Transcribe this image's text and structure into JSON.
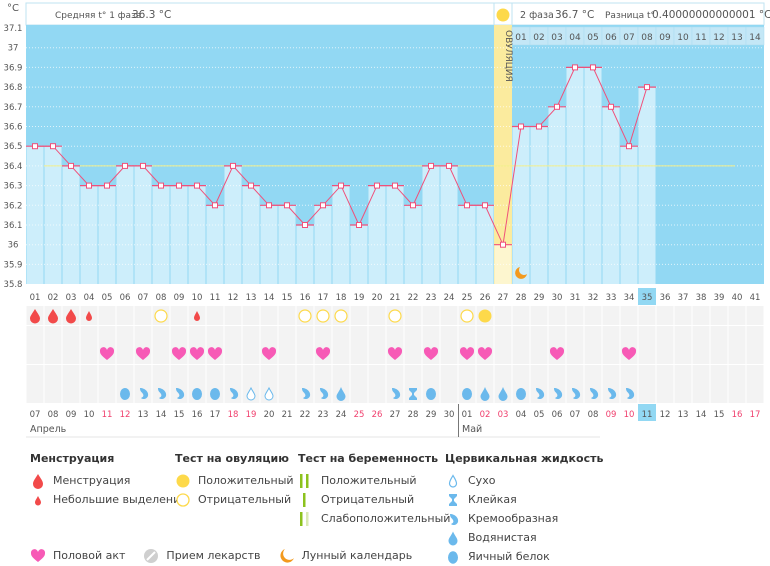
{
  "header": {
    "phase1_label": "Средняя t° 1 фаза",
    "phase1_value": "36.3 °C",
    "phase2_label": "2 фаза",
    "phase2_value": "36.7 °C",
    "diff_label": "Разница t°",
    "diff_value": "0.40000000000001 °C",
    "ovulation_label": "ОВУЛЯЦИЯ"
  },
  "colors": {
    "plot_bg": "#92d8f3",
    "bar": "#cdeefb",
    "ovulation": "#fbeb9e",
    "ovulation_bar": "#fdf6cf",
    "line": "#f0507a",
    "coverline": "#f3ef8a",
    "menstruation": "#f24a4a",
    "heart": "#f75ab6",
    "ovulation_test": "#fdd94a",
    "fluid": "#6bb9ec",
    "moon": "#f39a1e",
    "weekend": "#f0406e",
    "today": "#92d8f3"
  },
  "chart_data": {
    "type": "line",
    "ylabel": "°C",
    "ylim": [
      35.8,
      37.1
    ],
    "yticks": [
      "37.1",
      "37",
      "36.9",
      "36.8",
      "36.7",
      "36.6",
      "36.5",
      "36.4",
      "36.3",
      "36.2",
      "36.1",
      "36",
      "35.9",
      "35.8"
    ],
    "grid": true,
    "cycle_days": [
      "01",
      "02",
      "03",
      "04",
      "05",
      "06",
      "07",
      "08",
      "09",
      "10",
      "11",
      "12",
      "13",
      "14",
      "15",
      "16",
      "17",
      "18",
      "19",
      "20",
      "21",
      "22",
      "23",
      "24",
      "25",
      "26",
      "27",
      "28",
      "29",
      "30",
      "31",
      "32",
      "33",
      "34",
      "35",
      "36",
      "37",
      "38",
      "39",
      "40",
      "41"
    ],
    "temperatures": [
      36.5,
      36.5,
      36.4,
      36.3,
      36.3,
      36.4,
      36.4,
      36.3,
      36.3,
      36.3,
      36.2,
      36.4,
      36.3,
      36.2,
      36.2,
      36.1,
      36.2,
      36.3,
      36.1,
      36.3,
      36.3,
      36.2,
      36.4,
      36.4,
      36.2,
      36.2,
      36.0,
      36.6,
      36.6,
      36.7,
      36.9,
      36.9,
      36.7,
      36.5,
      36.8
    ],
    "ovulation_day": 27,
    "coverline": 36.4,
    "today_day": 35,
    "moon_day": 28,
    "phase2_days": [
      "01",
      "02",
      "03",
      "04",
      "05",
      "06",
      "07",
      "08",
      "09",
      "10",
      "11",
      "12",
      "13",
      "14"
    ]
  },
  "calendar": {
    "dates": [
      {
        "d": "07",
        "red": false
      },
      {
        "d": "08",
        "red": false
      },
      {
        "d": "09",
        "red": false
      },
      {
        "d": "10",
        "red": false
      },
      {
        "d": "11",
        "red": true
      },
      {
        "d": "12",
        "red": true
      },
      {
        "d": "13",
        "red": false
      },
      {
        "d": "14",
        "red": false
      },
      {
        "d": "15",
        "red": false
      },
      {
        "d": "16",
        "red": false
      },
      {
        "d": "17",
        "red": false
      },
      {
        "d": "18",
        "red": true
      },
      {
        "d": "19",
        "red": true
      },
      {
        "d": "20",
        "red": false
      },
      {
        "d": "21",
        "red": false
      },
      {
        "d": "22",
        "red": false
      },
      {
        "d": "23",
        "red": false
      },
      {
        "d": "24",
        "red": false
      },
      {
        "d": "25",
        "red": true
      },
      {
        "d": "26",
        "red": true
      },
      {
        "d": "27",
        "red": false
      },
      {
        "d": "28",
        "red": false
      },
      {
        "d": "29",
        "red": false
      },
      {
        "d": "30",
        "red": false
      },
      {
        "d": "01",
        "red": false
      },
      {
        "d": "02",
        "red": true
      },
      {
        "d": "03",
        "red": true
      },
      {
        "d": "04",
        "red": false
      },
      {
        "d": "05",
        "red": false
      },
      {
        "d": "06",
        "red": false
      },
      {
        "d": "07",
        "red": false
      },
      {
        "d": "08",
        "red": false
      },
      {
        "d": "09",
        "red": true
      },
      {
        "d": "10",
        "red": true
      },
      {
        "d": "11",
        "red": false
      },
      {
        "d": "12",
        "red": false
      },
      {
        "d": "13",
        "red": false
      },
      {
        "d": "14",
        "red": false
      },
      {
        "d": "15",
        "red": false
      },
      {
        "d": "16",
        "red": true
      },
      {
        "d": "17",
        "red": true
      }
    ],
    "months": [
      {
        "label": "Апрель",
        "start_day": 1
      },
      {
        "label": "Май",
        "start_day": 25
      }
    ]
  },
  "observations": {
    "menstruation": {
      "1": "full",
      "2": "full",
      "3": "full",
      "4": "spotting",
      "10": "spotting"
    },
    "ovulation_test": {
      "8": "negative",
      "16": "negative",
      "17": "negative",
      "18": "negative",
      "21": "negative",
      "25": "negative",
      "26": "positive"
    },
    "sex": [
      5,
      7,
      9,
      10,
      11,
      14,
      17,
      21,
      23,
      25,
      26,
      30,
      34
    ],
    "cervical_fluid": {
      "6": "egg",
      "7": "creamy",
      "8": "creamy",
      "9": "creamy",
      "10": "egg",
      "11": "egg",
      "12": "creamy",
      "13": "dry",
      "14": "dry",
      "16": "creamy",
      "17": "creamy",
      "18": "watery",
      "21": "creamy",
      "22": "sticky",
      "23": "egg",
      "25": "egg",
      "26": "watery",
      "27": "watery",
      "28": "egg",
      "29": "creamy",
      "30": "creamy",
      "31": "creamy",
      "32": "creamy",
      "33": "creamy",
      "34": "creamy"
    }
  },
  "legend": {
    "menstruation": {
      "title": "Менструация",
      "items": [
        "Менструация",
        "Небольшие выделения"
      ]
    },
    "ovulation_test": {
      "title": "Тест на овуляцию",
      "items": [
        "Положительный",
        "Отрицательный"
      ]
    },
    "pregnancy_test": {
      "title": "Тест на беременность",
      "items": [
        "Положительный",
        "Отрицательный",
        "Слабоположительный"
      ]
    },
    "cervical_fluid": {
      "title": "Цервикальная жидкость",
      "items": [
        "Сухо",
        "Клейкая",
        "Кремообразная",
        "Водянистая",
        "Яичный белок"
      ]
    },
    "other": [
      "Половой акт",
      "Прием лекарств",
      "Лунный календарь"
    ]
  }
}
